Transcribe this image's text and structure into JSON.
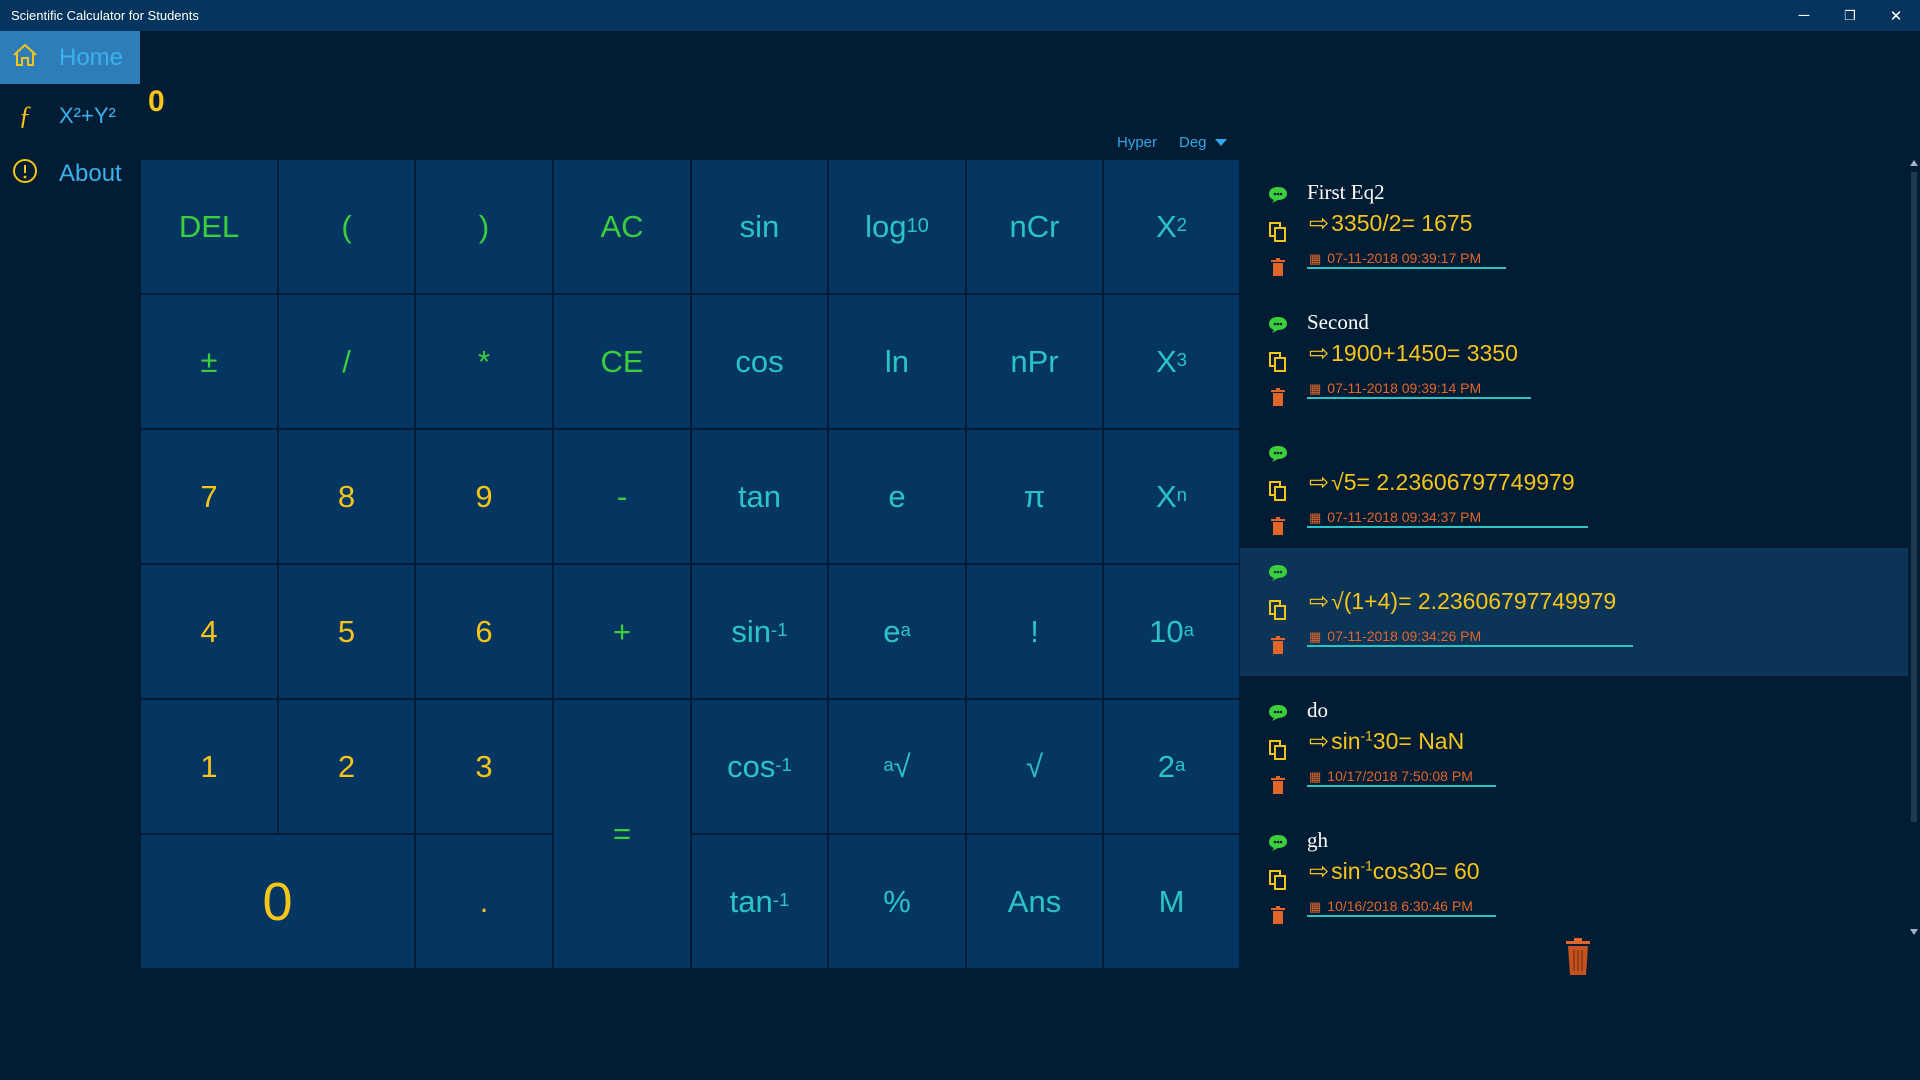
{
  "window": {
    "title": "Scientific Calculator for Students",
    "minimize": "─",
    "restore": "❐",
    "close": "✕"
  },
  "nav": [
    {
      "label": "Home",
      "icon": "home-icon"
    },
    {
      "label": "X²+Y²",
      "icon": "function-icon",
      "glyph": "ƒ"
    },
    {
      "label": "About",
      "icon": "info-icon",
      "glyph": "!"
    }
  ],
  "display": {
    "value": "0"
  },
  "modes": {
    "hyper": "Hyper",
    "angle": "Deg"
  },
  "keys": {
    "del": "DEL",
    "lparen": "(",
    "rparen": ")",
    "ac": "AC",
    "sin": "sin",
    "log": "log",
    "log_sub": "10",
    "ncr": "nCr",
    "x2": "X",
    "x2_sup": "2",
    "plusminus": "±",
    "div": "/",
    "mul": "*",
    "ce": "CE",
    "cos": "cos",
    "ln": "ln",
    "npr": "nPr",
    "x3": "X",
    "x3_sup": "3",
    "seven": "7",
    "eight": "8",
    "nine": "9",
    "minus": "-",
    "tan": "tan",
    "e": "e",
    "pi": "π",
    "xn": "X",
    "xn_sup": "n",
    "four": "4",
    "five": "5",
    "six": "6",
    "plus": "+",
    "asin": "sin",
    "asin_sup": "-1",
    "ea": "e",
    "ea_sup": "a",
    "fact": "!",
    "tena": "10",
    "tena_sup": "a",
    "one": "1",
    "two": "2",
    "three": "3",
    "equals": "=",
    "acos": "cos",
    "acos_sup": "-1",
    "aroot_sup": "a",
    "aroot": "√",
    "sqrt": "√",
    "twoa": "2",
    "twoa_sup": "a",
    "zero": "0",
    "dot": ".",
    "atan": "tan",
    "atan_sup": "-1",
    "percent": "%",
    "ans": "Ans",
    "mem": "M"
  },
  "history": [
    {
      "name": "First Eq2",
      "expr": "3350/2= 1675",
      "date": "07-11-2018 09:39:17 PM"
    },
    {
      "name": "Second",
      "expr": "1900+1450= 3350",
      "date": "07-11-2018 09:39:14 PM"
    },
    {
      "name": "",
      "expr": "√5= 2.23606797749979",
      "date": "07-11-2018 09:34:37 PM"
    },
    {
      "name": "",
      "expr": "√(1+4)= 2.23606797749979",
      "date": "07-11-2018 09:34:26 PM"
    },
    {
      "name": "do",
      "expr_pre": "sin",
      "expr_sup": "-1",
      "expr_post": "30= NaN",
      "date": "10/17/2018 7:50:08 PM"
    },
    {
      "name": "gh",
      "expr_pre": "sin",
      "expr_sup": "-1",
      "expr_post": "cos30= 60",
      "date": "10/16/2018 6:30:46 PM"
    }
  ],
  "colors": {
    "background": "#021d33",
    "key": "#053661",
    "accent": "#2bc4c4",
    "yellow": "#f5c518",
    "green": "#3ccf3c",
    "orange": "#e0662a",
    "nav_active": "#2e7db8"
  }
}
